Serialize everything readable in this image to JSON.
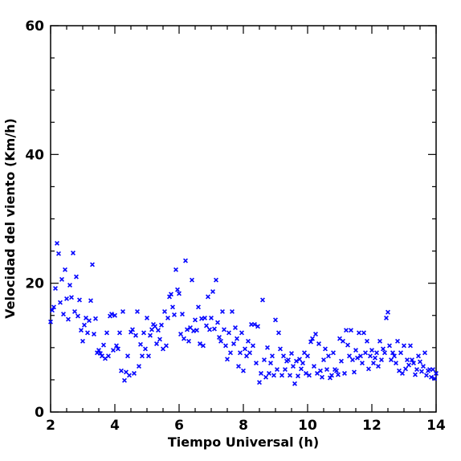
{
  "chart_data": {
    "type": "scatter",
    "title": "",
    "xlabel": "Tiempo Universal (h)",
    "ylabel": "Velocidad del viento (Km/h)",
    "xlim": [
      2,
      14
    ],
    "ylim": [
      0,
      60
    ],
    "x_ticks": [
      2,
      4,
      6,
      8,
      10,
      12,
      14
    ],
    "y_ticks": [
      0,
      20,
      40,
      60
    ],
    "x_tick_labels": [
      "2",
      "4",
      "6",
      "8",
      "10",
      "12",
      "14"
    ],
    "y_tick_labels": [
      "0",
      "20",
      "40",
      "60"
    ],
    "marker": "x",
    "color": "#0000ff",
    "grid": false,
    "legend": "none",
    "points": [
      [
        2.0,
        14.0
      ],
      [
        2.05,
        15.8
      ],
      [
        2.1,
        16.3
      ],
      [
        2.15,
        19.2
      ],
      [
        2.2,
        26.2
      ],
      [
        2.25,
        24.6
      ],
      [
        2.3,
        17.0
      ],
      [
        2.35,
        20.6
      ],
      [
        2.4,
        15.2
      ],
      [
        2.45,
        22.1
      ],
      [
        2.5,
        17.6
      ],
      [
        2.55,
        14.4
      ],
      [
        2.6,
        19.7
      ],
      [
        2.65,
        17.8
      ],
      [
        2.7,
        24.7
      ],
      [
        2.75,
        15.6
      ],
      [
        2.8,
        21.0
      ],
      [
        2.85,
        14.9
      ],
      [
        2.9,
        17.4
      ],
      [
        2.95,
        12.7
      ],
      [
        3.0,
        11.0
      ],
      [
        3.05,
        13.5
      ],
      [
        3.1,
        14.6
      ],
      [
        3.15,
        12.3
      ],
      [
        3.2,
        14.2
      ],
      [
        3.25,
        17.3
      ],
      [
        3.3,
        22.9
      ],
      [
        3.35,
        12.1
      ],
      [
        3.4,
        14.5
      ],
      [
        3.45,
        9.2
      ],
      [
        3.5,
        9.6
      ],
      [
        3.55,
        9.1
      ],
      [
        3.6,
        8.7
      ],
      [
        3.65,
        10.4
      ],
      [
        3.7,
        8.3
      ],
      [
        3.75,
        12.3
      ],
      [
        3.8,
        8.7
      ],
      [
        3.85,
        14.9
      ],
      [
        3.9,
        15.2
      ],
      [
        3.95,
        9.6
      ],
      [
        4.0,
        15.0
      ],
      [
        4.05,
        10.3
      ],
      [
        4.1,
        9.8
      ],
      [
        4.15,
        12.3
      ],
      [
        4.2,
        6.4
      ],
      [
        4.25,
        15.6
      ],
      [
        4.3,
        4.9
      ],
      [
        4.35,
        6.2
      ],
      [
        4.4,
        8.7
      ],
      [
        4.45,
        5.7
      ],
      [
        4.5,
        12.4
      ],
      [
        4.55,
        12.8
      ],
      [
        4.6,
        6.0
      ],
      [
        4.65,
        11.9
      ],
      [
        4.7,
        15.6
      ],
      [
        4.75,
        7.1
      ],
      [
        4.8,
        10.5
      ],
      [
        4.85,
        8.7
      ],
      [
        4.9,
        12.3
      ],
      [
        4.95,
        9.8
      ],
      [
        5.0,
        14.6
      ],
      [
        5.05,
        8.7
      ],
      [
        5.1,
        11.9
      ],
      [
        5.15,
        12.8
      ],
      [
        5.2,
        13.6
      ],
      [
        5.25,
        13.3
      ],
      [
        5.3,
        10.6
      ],
      [
        5.35,
        12.7
      ],
      [
        5.4,
        11.3
      ],
      [
        5.45,
        13.5
      ],
      [
        5.5,
        9.8
      ],
      [
        5.55,
        15.6
      ],
      [
        5.6,
        10.3
      ],
      [
        5.65,
        14.6
      ],
      [
        5.7,
        17.9
      ],
      [
        5.75,
        18.3
      ],
      [
        5.8,
        16.3
      ],
      [
        5.85,
        15.1
      ],
      [
        5.9,
        22.1
      ],
      [
        5.95,
        19.0
      ],
      [
        6.0,
        18.4
      ],
      [
        6.05,
        12.1
      ],
      [
        6.1,
        15.2
      ],
      [
        6.15,
        11.4
      ],
      [
        6.2,
        23.5
      ],
      [
        6.25,
        12.8
      ],
      [
        6.3,
        11.0
      ],
      [
        6.35,
        13.1
      ],
      [
        6.4,
        20.5
      ],
      [
        6.45,
        12.6
      ],
      [
        6.5,
        14.3
      ],
      [
        6.55,
        12.7
      ],
      [
        6.6,
        16.3
      ],
      [
        6.65,
        10.6
      ],
      [
        6.7,
        14.5
      ],
      [
        6.75,
        10.3
      ],
      [
        6.8,
        14.6
      ],
      [
        6.85,
        13.4
      ],
      [
        6.9,
        17.9
      ],
      [
        6.95,
        12.8
      ],
      [
        7.0,
        14.6
      ],
      [
        7.05,
        18.7
      ],
      [
        7.1,
        12.9
      ],
      [
        7.15,
        20.5
      ],
      [
        7.2,
        13.9
      ],
      [
        7.25,
        11.6
      ],
      [
        7.3,
        11.0
      ],
      [
        7.35,
        15.6
      ],
      [
        7.4,
        12.8
      ],
      [
        7.45,
        10.3
      ],
      [
        7.5,
        8.2
      ],
      [
        7.55,
        12.3
      ],
      [
        7.6,
        9.2
      ],
      [
        7.65,
        15.6
      ],
      [
        7.7,
        10.6
      ],
      [
        7.75,
        13.1
      ],
      [
        7.8,
        11.4
      ],
      [
        7.85,
        7.1
      ],
      [
        7.9,
        9.2
      ],
      [
        7.95,
        12.3
      ],
      [
        8.0,
        6.4
      ],
      [
        8.05,
        9.8
      ],
      [
        8.1,
        8.7
      ],
      [
        8.15,
        11.0
      ],
      [
        8.2,
        9.2
      ],
      [
        8.25,
        13.6
      ],
      [
        8.3,
        10.3
      ],
      [
        8.35,
        13.6
      ],
      [
        8.4,
        7.6
      ],
      [
        8.45,
        13.3
      ],
      [
        8.5,
        4.6
      ],
      [
        8.55,
        6.0
      ],
      [
        8.6,
        17.4
      ],
      [
        8.65,
        8.1
      ],
      [
        8.7,
        5.4
      ],
      [
        8.75,
        10.0
      ],
      [
        8.8,
        6.0
      ],
      [
        8.85,
        7.6
      ],
      [
        8.9,
        8.7
      ],
      [
        8.95,
        5.7
      ],
      [
        9.0,
        14.3
      ],
      [
        9.05,
        6.6
      ],
      [
        9.1,
        12.3
      ],
      [
        9.15,
        9.8
      ],
      [
        9.2,
        5.7
      ],
      [
        9.25,
        8.7
      ],
      [
        9.3,
        6.6
      ],
      [
        9.35,
        7.9
      ],
      [
        9.4,
        8.1
      ],
      [
        9.45,
        5.7
      ],
      [
        9.5,
        9.1
      ],
      [
        9.55,
        7.1
      ],
      [
        9.6,
        4.4
      ],
      [
        9.65,
        7.9
      ],
      [
        9.7,
        5.6
      ],
      [
        9.75,
        8.2
      ],
      [
        9.8,
        6.7
      ],
      [
        9.85,
        7.6
      ],
      [
        9.9,
        9.2
      ],
      [
        9.95,
        6.0
      ],
      [
        10.0,
        8.7
      ],
      [
        10.05,
        5.7
      ],
      [
        10.1,
        10.9
      ],
      [
        10.15,
        11.4
      ],
      [
        10.2,
        7.1
      ],
      [
        10.25,
        12.1
      ],
      [
        10.3,
        6.0
      ],
      [
        10.35,
        10.6
      ],
      [
        10.4,
        6.4
      ],
      [
        10.45,
        5.4
      ],
      [
        10.5,
        8.1
      ],
      [
        10.55,
        9.8
      ],
      [
        10.6,
        6.6
      ],
      [
        10.65,
        8.7
      ],
      [
        10.7,
        5.3
      ],
      [
        10.75,
        5.7
      ],
      [
        10.8,
        9.2
      ],
      [
        10.85,
        6.6
      ],
      [
        10.9,
        6.4
      ],
      [
        10.95,
        5.8
      ],
      [
        11.0,
        11.4
      ],
      [
        11.05,
        7.9
      ],
      [
        11.1,
        11.0
      ],
      [
        11.15,
        6.0
      ],
      [
        11.2,
        12.7
      ],
      [
        11.25,
        10.4
      ],
      [
        11.3,
        8.7
      ],
      [
        11.35,
        12.7
      ],
      [
        11.4,
        8.1
      ],
      [
        11.45,
        6.2
      ],
      [
        11.5,
        9.6
      ],
      [
        11.55,
        8.4
      ],
      [
        11.6,
        12.3
      ],
      [
        11.65,
        8.7
      ],
      [
        11.7,
        7.6
      ],
      [
        11.75,
        12.3
      ],
      [
        11.8,
        9.2
      ],
      [
        11.85,
        11.0
      ],
      [
        11.9,
        6.7
      ],
      [
        11.95,
        8.7
      ],
      [
        12.0,
        9.6
      ],
      [
        12.05,
        7.6
      ],
      [
        12.1,
        8.4
      ],
      [
        12.15,
        9.2
      ],
      [
        12.2,
        7.1
      ],
      [
        12.25,
        11.0
      ],
      [
        12.3,
        8.1
      ],
      [
        12.35,
        9.8
      ],
      [
        12.4,
        9.2
      ],
      [
        12.45,
        14.6
      ],
      [
        12.5,
        15.5
      ],
      [
        12.55,
        10.3
      ],
      [
        12.6,
        8.1
      ],
      [
        12.65,
        9.2
      ],
      [
        12.7,
        8.7
      ],
      [
        12.75,
        7.6
      ],
      [
        12.8,
        11.0
      ],
      [
        12.85,
        6.4
      ],
      [
        12.9,
        9.2
      ],
      [
        12.95,
        6.0
      ],
      [
        13.0,
        10.3
      ],
      [
        13.05,
        6.7
      ],
      [
        13.1,
        8.1
      ],
      [
        13.15,
        7.3
      ],
      [
        13.2,
        10.3
      ],
      [
        13.25,
        8.1
      ],
      [
        13.3,
        7.6
      ],
      [
        13.35,
        5.8
      ],
      [
        13.4,
        6.6
      ],
      [
        13.45,
        8.7
      ],
      [
        13.5,
        7.8
      ],
      [
        13.55,
        6.3
      ],
      [
        13.6,
        7.1
      ],
      [
        13.65,
        9.2
      ],
      [
        13.7,
        5.7
      ],
      [
        13.75,
        6.4
      ],
      [
        13.8,
        6.6
      ],
      [
        13.85,
        5.4
      ],
      [
        13.9,
        6.6
      ],
      [
        13.95,
        5.2
      ],
      [
        14.0,
        6.0
      ]
    ]
  }
}
